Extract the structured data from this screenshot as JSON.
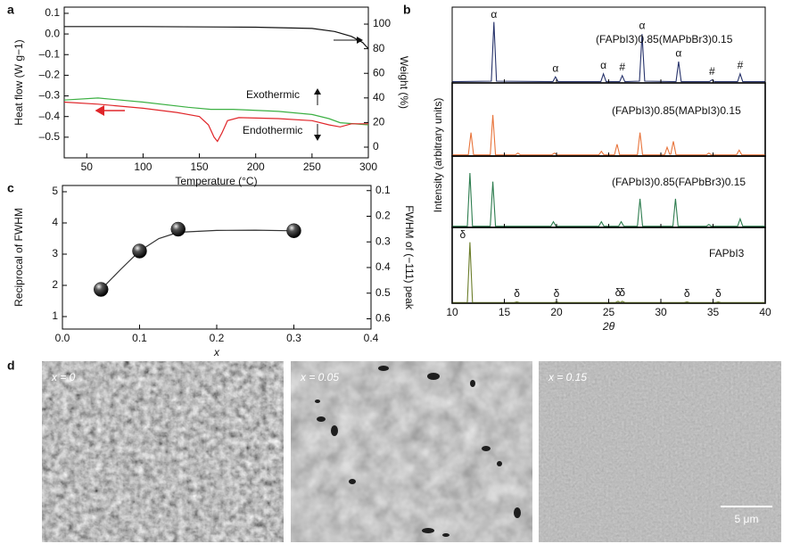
{
  "chart_data": [
    {
      "panel": "a",
      "type": "line",
      "xlabel": "Temperature (°C)",
      "ylabel": "Heat flow (W g−1)",
      "y2label": "Weight (%)",
      "annotations": [
        "Exothermic",
        "Endothermic"
      ],
      "xlim": [
        30,
        300
      ],
      "xticks": [
        50,
        100,
        150,
        200,
        250,
        300
      ],
      "ylim": [
        -0.6,
        0.13
      ],
      "yticks": [
        0.1,
        {
          "value": 0,
          "label": "0.0"
        },
        {
          "value": -0.1,
          "label": "–0.1"
        },
        {
          "value": -0.2,
          "label": "–0.2"
        },
        {
          "value": -0.3,
          "label": "–0.3"
        },
        {
          "value": -0.4,
          "label": "–0.4"
        },
        {
          "value": -0.5,
          "label": "–0.5"
        }
      ],
      "y2lim": [
        -8.7,
        113.8
      ],
      "y2ticks": [
        0,
        20,
        40,
        60,
        80,
        100
      ],
      "series": [
        {
          "color": "#111111",
          "axis": "y2",
          "x": [
            30,
            100,
            200,
            250,
            270,
            285,
            295,
            300
          ],
          "values": [
            98,
            98,
            97.5,
            96.5,
            94,
            90,
            85,
            80
          ]
        },
        {
          "color": "#3cb043",
          "x": [
            30,
            60,
            100,
            140,
            160,
            180,
            220,
            250,
            265,
            275,
            300
          ],
          "values": [
            -0.32,
            -0.31,
            -0.33,
            -0.355,
            -0.365,
            -0.365,
            -0.375,
            -0.39,
            -0.41,
            -0.43,
            -0.44
          ]
        },
        {
          "color": "#e0262a",
          "x": [
            30,
            60,
            100,
            130,
            150,
            158,
            163,
            166,
            170,
            175,
            185,
            220,
            250,
            265,
            275,
            285,
            300
          ],
          "values": [
            -0.33,
            -0.34,
            -0.36,
            -0.38,
            -0.4,
            -0.44,
            -0.5,
            -0.52,
            -0.48,
            -0.42,
            -0.405,
            -0.41,
            -0.42,
            -0.44,
            -0.45,
            -0.435,
            -0.435
          ]
        }
      ]
    },
    {
      "panel": "b",
      "type": "line",
      "xlabel": "2θ",
      "ylabel": "Intensity (arbitrary units)",
      "xlim": [
        10,
        40
      ],
      "xticks": [
        10,
        15,
        20,
        25,
        30,
        35,
        40
      ],
      "ylim": [
        0,
        1.2
      ],
      "panels": [
        {
          "label": "(FAPbI3)0.85(MAPbBr3)0.15",
          "color": "#27336b",
          "x": [
            10,
            13.75,
            14.0,
            14.25,
            19.65,
            19.9,
            20.15,
            24.25,
            24.5,
            24.75,
            26.05,
            26.3,
            26.55,
            27.95,
            28.2,
            28.45,
            31.45,
            31.7,
            31.95,
            34.65,
            34.9,
            35.15,
            37.35,
            37.6,
            37.85,
            40
          ],
          "values": [
            0.02,
            0.03,
            1.0,
            0.03,
            0.02,
            0.1,
            0.02,
            0.02,
            0.15,
            0.02,
            0.02,
            0.12,
            0.02,
            0.03,
            0.8,
            0.03,
            0.02,
            0.35,
            0.02,
            0.02,
            0.05,
            0.02,
            0.02,
            0.15,
            0.02,
            0.02
          ],
          "markers": [
            {
              "label": "α",
              "x": 14.0
            },
            {
              "label": "α",
              "x": 19.9
            },
            {
              "label": "α",
              "x": 24.5
            },
            {
              "label": "#",
              "x": 26.3
            },
            {
              "label": "α",
              "x": 28.2
            },
            {
              "label": "α",
              "x": 31.7
            },
            {
              "label": "#",
              "x": 34.9
            },
            {
              "label": "#",
              "x": 37.6
            }
          ]
        },
        {
          "label": "(FAPbI3)0.85(MAPbI3)0.15",
          "color": "#e8743b",
          "x": [
            10,
            11.55,
            11.8,
            12.05,
            13.65,
            13.9,
            14.15,
            16.05,
            16.3,
            16.55,
            19.55,
            19.8,
            20.05,
            24.05,
            24.3,
            24.55,
            25.55,
            25.8,
            26.05,
            27.75,
            28.0,
            28.25,
            30.35,
            30.6,
            30.85,
            30.95,
            31.2,
            31.45,
            34.35,
            34.6,
            34.85,
            37.25,
            37.5,
            37.75,
            40
          ],
          "values": [
            0.02,
            0.02,
            0.4,
            0.02,
            0.02,
            0.7,
            0.02,
            0.02,
            0.05,
            0.02,
            0.02,
            0.05,
            0.02,
            0.02,
            0.08,
            0.02,
            0.02,
            0.2,
            0.02,
            0.02,
            0.4,
            0.02,
            0.02,
            0.15,
            0.03,
            0.03,
            0.25,
            0.02,
            0.02,
            0.05,
            0.02,
            0.02,
            0.1,
            0.02,
            0.02
          ],
          "markers": []
        },
        {
          "label": "(FAPbI3)0.85(FAPbBr3)0.15",
          "color": "#2e7d4f",
          "x": [
            10,
            11.45,
            11.7,
            11.95,
            13.65,
            13.9,
            14.15,
            19.45,
            19.7,
            19.95,
            24.05,
            24.3,
            24.55,
            25.95,
            26.2,
            26.45,
            27.75,
            28.0,
            28.25,
            31.15,
            31.4,
            31.65,
            34.35,
            34.6,
            34.85,
            37.35,
            37.6,
            37.85,
            40
          ],
          "values": [
            0.02,
            0.02,
            0.95,
            0.02,
            0.02,
            0.8,
            0.02,
            0.02,
            0.1,
            0.02,
            0.02,
            0.1,
            0.02,
            0.02,
            0.1,
            0.02,
            0.02,
            0.5,
            0.02,
            0.02,
            0.5,
            0.02,
            0.02,
            0.05,
            0.02,
            0.02,
            0.15,
            0.02,
            0.02
          ],
          "markers": []
        },
        {
          "label": "FAPbI3",
          "color": "#6b7d2a",
          "x": [
            10,
            11.45,
            11.7,
            11.95,
            15.95,
            16.2,
            16.45,
            19.75,
            20.0,
            20.25,
            25.65,
            25.9,
            26.1,
            26.3,
            26.55,
            32.25,
            32.5,
            32.75,
            35.25,
            35.5,
            35.75,
            40
          ],
          "values": [
            0.01,
            0.01,
            1.0,
            0.01,
            0.01,
            0.02,
            0.01,
            0.01,
            0.02,
            0.01,
            0.01,
            0.03,
            0.01,
            0.03,
            0.01,
            0.01,
            0.02,
            0.01,
            0.01,
            0.02,
            0.01,
            0.01
          ],
          "markers": [
            {
              "label": "δ",
              "x": 11.7
            },
            {
              "label": "δ",
              "x": 16.2
            },
            {
              "label": "δ",
              "x": 20.0
            },
            {
              "label": "δ",
              "x": 25.9
            },
            {
              "label": "δ",
              "x": 26.3
            },
            {
              "label": "δ",
              "x": 32.5
            },
            {
              "label": "δ",
              "x": 35.5
            }
          ]
        }
      ]
    },
    {
      "panel": "c",
      "type": "scatter",
      "xlabel": "x",
      "ylabel": "Reciprocal of FWHM",
      "y2label": "FWHM of (−111) peak",
      "xlim": [
        0,
        0.4
      ],
      "xticks": [
        {
          "value": 0,
          "label": "0.0"
        },
        0.1,
        0.2,
        0.3,
        0.4
      ],
      "ylim": [
        0.6,
        5.2
      ],
      "yticks": [
        1,
        2,
        3,
        4,
        5
      ],
      "y2lim": [
        0.64,
        0.08
      ],
      "y2ticks": [
        0.1,
        0.2,
        0.3,
        0.4,
        0.5,
        0.6
      ],
      "series": [
        {
          "style": "line",
          "color": "#333333",
          "x": [
            0.05,
            0.075,
            0.1,
            0.125,
            0.15,
            0.2,
            0.25,
            0.3
          ],
          "values": [
            1.87,
            2.5,
            3.1,
            3.5,
            3.7,
            3.76,
            3.77,
            3.75
          ]
        },
        {
          "style": "marker",
          "color": "#111111",
          "x": [
            0.05,
            0.1,
            0.15,
            0.3
          ],
          "values": [
            1.87,
            3.1,
            3.8,
            3.75
          ]
        }
      ]
    }
  ],
  "micrographs": {
    "panel": "d",
    "images": [
      {
        "label": "x = 0"
      },
      {
        "label": "x = 0.05"
      },
      {
        "label": "x = 0.15"
      }
    ],
    "scale_bar": "5 μm"
  }
}
